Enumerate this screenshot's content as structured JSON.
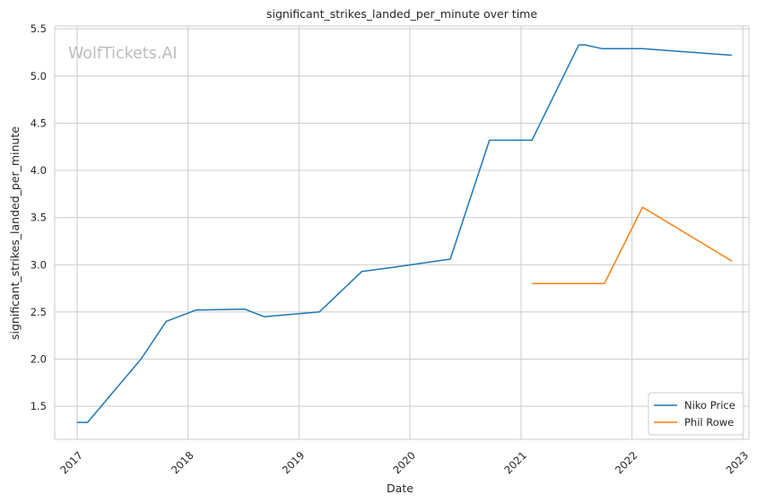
{
  "chart_data": {
    "type": "line",
    "title": "significant_strikes_landed_per_minute over time",
    "xlabel": "Date",
    "ylabel": "significant_strikes_landed_per_minute",
    "watermark": "WolfTickets.AI",
    "x_ticks": [
      "2017",
      "2018",
      "2019",
      "2020",
      "2021",
      "2022",
      "2023"
    ],
    "y_ticks": [
      "1.5",
      "2.0",
      "2.5",
      "3.0",
      "3.5",
      "4.0",
      "4.5",
      "5.0",
      "5.5"
    ],
    "xlim": [
      "2016-10-19",
      "2023-01-21"
    ],
    "ylim": [
      1.15,
      5.53
    ],
    "grid": true,
    "legend_position": "bottom-right",
    "series": [
      {
        "name": "Niko Price",
        "color": "#1f77b4",
        "points": [
          [
            "2016-12-31",
            1.33
          ],
          [
            "2017-02-04",
            1.33
          ],
          [
            "2017-07-30",
            2.0
          ],
          [
            "2017-10-21",
            2.4
          ],
          [
            "2018-01-27",
            2.52
          ],
          [
            "2018-07-07",
            2.53
          ],
          [
            "2018-09-08",
            2.45
          ],
          [
            "2019-03-09",
            2.5
          ],
          [
            "2019-07-27",
            2.93
          ],
          [
            "2019-11-02",
            2.97
          ],
          [
            "2020-05-13",
            3.06
          ],
          [
            "2020-09-19",
            4.32
          ],
          [
            "2021-02-06",
            4.32
          ],
          [
            "2021-07-10",
            5.33
          ],
          [
            "2021-07-31",
            5.33
          ],
          [
            "2021-09-25",
            5.29
          ],
          [
            "2022-02-05",
            5.29
          ],
          [
            "2022-11-26",
            5.22
          ]
        ]
      },
      {
        "name": "Phil Rowe",
        "color": "#ff7f0e",
        "points": [
          [
            "2021-02-06",
            2.8
          ],
          [
            "2021-10-02",
            2.8
          ],
          [
            "2022-02-05",
            3.61
          ],
          [
            "2022-11-26",
            3.04
          ]
        ]
      }
    ]
  }
}
